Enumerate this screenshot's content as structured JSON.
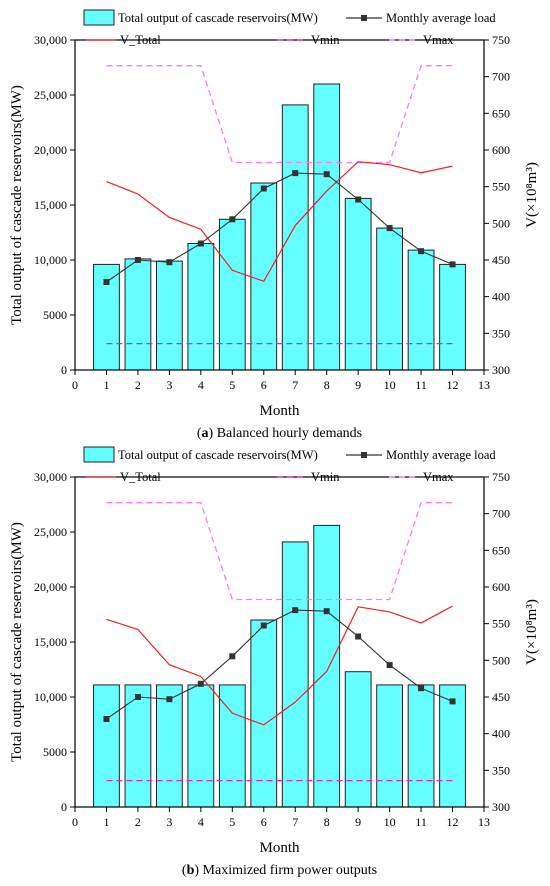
{
  "chart_data": [
    {
      "type": "bar",
      "caption_letter": "a",
      "caption_text": " Balanced hourly demands",
      "xlabel": "Month",
      "ylabel": "Total output of cascade reservoirs(MW)",
      "ylabel_right": "V(×10⁸m³)",
      "xlim": [
        0,
        13
      ],
      "ylim": [
        0,
        30000
      ],
      "ylim_right": [
        300,
        750
      ],
      "x_ticks": [
        "0",
        "1",
        "2",
        "3",
        "4",
        "5",
        "6",
        "7",
        "8",
        "9",
        "10",
        "11",
        "12",
        "13"
      ],
      "y_ticks": [
        "0",
        "5000",
        "10,000",
        "15,000",
        "20,000",
        "25,000",
        "30,000"
      ],
      "y_ticks_right": [
        "300",
        "350",
        "400",
        "450",
        "500",
        "550",
        "600",
        "650",
        "700",
        "750"
      ],
      "legend": {
        "bar": "Total output of cascade reservoirs(MW)",
        "load": "Monthly average load",
        "vtotal": "V_Total",
        "vmin": "Vmin",
        "vmax": "Vmax"
      },
      "x": [
        1,
        2,
        3,
        4,
        5,
        6,
        7,
        8,
        9,
        10,
        11,
        12
      ],
      "series": [
        {
          "name": "Total output of cascade reservoirs(MW)",
          "kind": "bar",
          "axis": "left",
          "color": "#66ffff",
          "values": [
            9600,
            10100,
            9900,
            11500,
            13700,
            17000,
            24100,
            26000,
            15600,
            12900,
            10900,
            9600
          ]
        },
        {
          "name": "Monthly average load",
          "kind": "line-marker",
          "axis": "left",
          "color": "#333333",
          "values": [
            8000,
            10000,
            9800,
            11500,
            13700,
            16500,
            17900,
            17800,
            15500,
            12900,
            10800,
            9600
          ]
        },
        {
          "name": "V_Total",
          "kind": "line",
          "axis": "right",
          "color": "#ee2222",
          "values": [
            557,
            540,
            508,
            492,
            436,
            421,
            497,
            544,
            584,
            580,
            569,
            578
          ]
        },
        {
          "name": "Vmin",
          "kind": "dash",
          "axis": "right",
          "color": "#dd22dd",
          "values": [
            336,
            336,
            336,
            336,
            336,
            336,
            336,
            336,
            336,
            336,
            336,
            336
          ]
        },
        {
          "name": "Vmax",
          "kind": "dash",
          "axis": "right",
          "color": "#ff77ff",
          "values": [
            715,
            715,
            715,
            715,
            583,
            583,
            583,
            583,
            583,
            583,
            715,
            715
          ]
        }
      ]
    },
    {
      "type": "bar",
      "caption_letter": "b",
      "caption_text": " Maximized firm power outputs",
      "xlabel": "Month",
      "ylabel": "Total output of cascade reservoirs(MW)",
      "ylabel_right": "V(×10⁸m³)",
      "xlim": [
        0,
        13
      ],
      "ylim": [
        0,
        30000
      ],
      "ylim_right": [
        300,
        750
      ],
      "x_ticks": [
        "0",
        "1",
        "2",
        "3",
        "4",
        "5",
        "6",
        "7",
        "8",
        "9",
        "10",
        "11",
        "12",
        "13"
      ],
      "y_ticks": [
        "0",
        "5000",
        "10,000",
        "15,000",
        "20,000",
        "25,000",
        "30,000"
      ],
      "y_ticks_right": [
        "300",
        "350",
        "400",
        "450",
        "500",
        "550",
        "600",
        "650",
        "700",
        "750"
      ],
      "legend": {
        "bar": "Total output of cascade reservoirs(MW)",
        "load": "Monthly average load",
        "vtotal": "V_Total",
        "vmin": "Vmin",
        "vmax": "Vmax"
      },
      "x": [
        1,
        2,
        3,
        4,
        5,
        6,
        7,
        8,
        9,
        10,
        11,
        12
      ],
      "series": [
        {
          "name": "Total output of cascade reservoirs(MW)",
          "kind": "bar",
          "axis": "left",
          "color": "#66ffff",
          "values": [
            11100,
            11100,
            11100,
            11100,
            11100,
            17000,
            24100,
            25600,
            12300,
            11100,
            11100,
            11100
          ]
        },
        {
          "name": "Monthly average load",
          "kind": "line-marker",
          "axis": "left",
          "color": "#333333",
          "values": [
            8000,
            10000,
            9800,
            11200,
            13700,
            16500,
            17900,
            17800,
            15500,
            12900,
            10800,
            9600
          ]
        },
        {
          "name": "V_Total",
          "kind": "line",
          "axis": "right",
          "color": "#ee2222",
          "values": [
            556,
            542,
            494,
            478,
            428,
            412,
            443,
            485,
            573,
            566,
            551,
            574
          ]
        },
        {
          "name": "Vmin",
          "kind": "dash",
          "axis": "right",
          "color": "#dd22dd",
          "values": [
            336,
            336,
            336,
            336,
            336,
            336,
            336,
            336,
            336,
            336,
            336,
            336
          ]
        },
        {
          "name": "Vmax",
          "kind": "dash",
          "axis": "right",
          "color": "#ff77ff",
          "values": [
            715,
            715,
            715,
            715,
            583,
            583,
            583,
            583,
            583,
            583,
            715,
            715
          ]
        }
      ]
    }
  ]
}
